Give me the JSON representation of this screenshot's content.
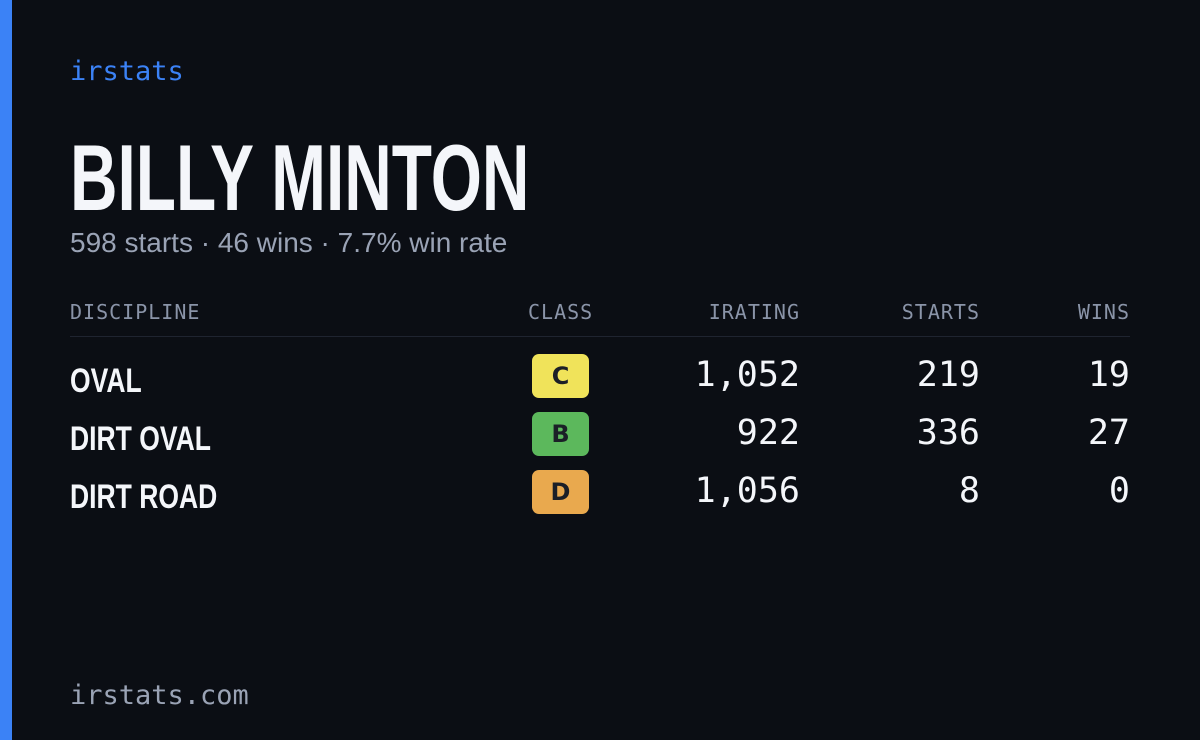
{
  "brand": "irstats",
  "driver": {
    "name": "BILLY MINTON",
    "summary": "598 starts · 46 wins · 7.7% win rate"
  },
  "table": {
    "headers": [
      "DISCIPLINE",
      "CLASS",
      "IRATING",
      "STARTS",
      "WINS"
    ],
    "rows": [
      {
        "discipline": "OVAL",
        "class": "C",
        "class_color": "#f0e35a",
        "irating": "1,052",
        "starts": "219",
        "wins": "19"
      },
      {
        "discipline": "DIRT OVAL",
        "class": "B",
        "class_color": "#5cb85c",
        "irating": "922",
        "starts": "336",
        "wins": "27"
      },
      {
        "discipline": "DIRT ROAD",
        "class": "D",
        "class_color": "#e9a94e",
        "irating": "1,056",
        "starts": "8",
        "wins": "0"
      }
    ]
  },
  "footer": "irstats.com"
}
